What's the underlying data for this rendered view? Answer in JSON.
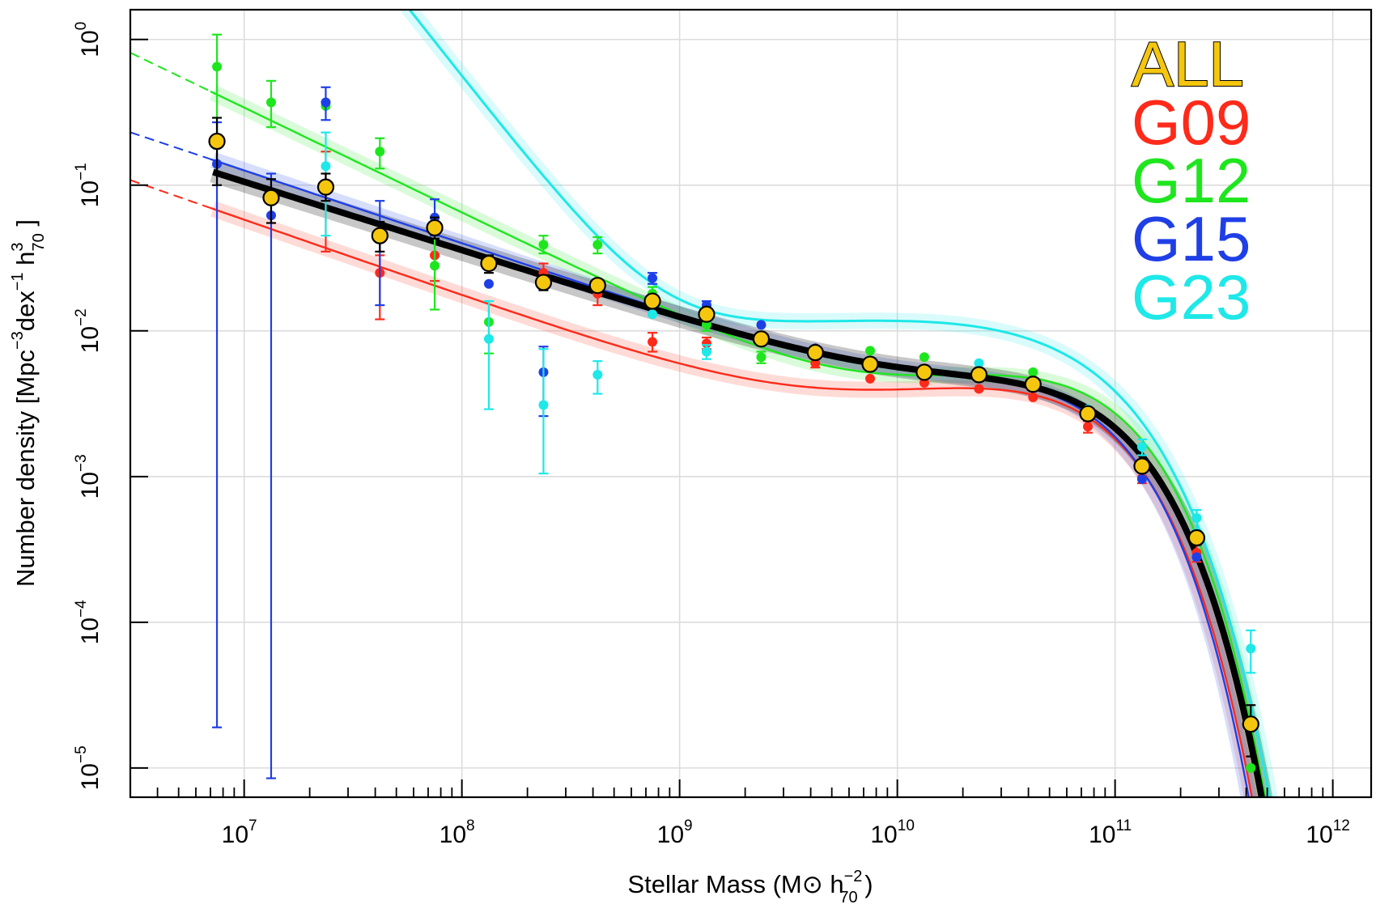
{
  "chart_data": {
    "type": "scatter",
    "title": "",
    "xlabel": "Stellar Mass (M⊙ h⁻²₇₀ )",
    "xlabel_parts": {
      "prefix": "Stellar Mass (M",
      "sun": "⊙",
      "h": " h",
      "sup": "−2",
      "sub": "70",
      "suffix": " )"
    },
    "ylabel": "Number density [Mpc⁻³dex⁻¹ h³₇₀ ]",
    "ylabel_parts": {
      "prefix": "Number density [Mpc",
      "sup1": "−3",
      "dex": "dex",
      "sup2": "−1",
      "h": " h",
      "sup3": "3",
      "sub3": "70",
      "suffix": " ]"
    },
    "xscale": "log",
    "yscale": "log",
    "xlim": [
      3000000,
      1500000000000
    ],
    "ylim": [
      6.3e-06,
      1.6
    ],
    "grid": true,
    "legend_position": "top-right",
    "x_ticks": [
      {
        "base": "10",
        "exp": "7",
        "value": 10000000
      },
      {
        "base": "10",
        "exp": "8",
        "value": 100000000
      },
      {
        "base": "10",
        "exp": "9",
        "value": 1000000000
      },
      {
        "base": "10",
        "exp": "10",
        "value": 10000000000
      },
      {
        "base": "10",
        "exp": "11",
        "value": 100000000000
      },
      {
        "base": "10",
        "exp": "12",
        "value": 1000000000000
      }
    ],
    "y_ticks": [
      {
        "base": "10",
        "exp": "0",
        "value": 1
      },
      {
        "base": "10",
        "exp": "−1",
        "value": 0.1
      },
      {
        "base": "10",
        "exp": "−2",
        "value": 0.01
      },
      {
        "base": "10",
        "exp": "−3",
        "value": 0.001
      },
      {
        "base": "10",
        "exp": "−4",
        "value": 0.0001
      },
      {
        "base": "10",
        "exp": "−5",
        "value": 1e-05
      }
    ],
    "series": [
      {
        "name": "ALL",
        "color": "#f5c60e",
        "outline": "#000000",
        "fit_curve": {
          "Mstar": 55000000000.0,
          "phi1": 0.0035,
          "a1": -0.35,
          "phi2": 0.0008,
          "a2": -1.47,
          "shade": "#000000"
        },
        "points": [
          {
            "x": 7500000.0,
            "y": 0.2,
            "lo": 0.1,
            "hi": 0.29
          },
          {
            "x": 13300000.0,
            "y": 0.082,
            "lo": 0.055,
            "hi": 0.11
          },
          {
            "x": 23700000.0,
            "y": 0.097,
            "lo": 0.078,
            "hi": 0.12
          },
          {
            "x": 42000000.0,
            "y": 0.045,
            "lo": 0.035,
            "hi": 0.056
          },
          {
            "x": 75000000.0,
            "y": 0.051,
            "lo": 0.043,
            "hi": 0.06
          },
          {
            "x": 133000000.0,
            "y": 0.029,
            "lo": 0.025,
            "hi": 0.033
          },
          {
            "x": 237000000.0,
            "y": 0.0215,
            "lo": 0.019,
            "hi": 0.024
          },
          {
            "x": 420000000.0,
            "y": 0.0205,
            "lo": 0.0185,
            "hi": 0.0225
          },
          {
            "x": 750000000.0,
            "y": 0.016,
            "lo": 0.0147,
            "hi": 0.0173
          },
          {
            "x": 1330000000.0,
            "y": 0.013,
            "lo": 0.0122,
            "hi": 0.0138
          },
          {
            "x": 2370000000.0,
            "y": 0.0088,
            "lo": 0.0083,
            "hi": 0.0093
          },
          {
            "x": 4200000000.0,
            "y": 0.0071,
            "lo": 0.0068,
            "hi": 0.0074
          },
          {
            "x": 7500000000.0,
            "y": 0.0059,
            "lo": 0.0057,
            "hi": 0.0061
          },
          {
            "x": 13300000000.0,
            "y": 0.0052,
            "lo": 0.005,
            "hi": 0.0054
          },
          {
            "x": 23700000000.0,
            "y": 0.005,
            "lo": 0.0048,
            "hi": 0.0052
          },
          {
            "x": 42000000000.0,
            "y": 0.0043,
            "lo": 0.0041,
            "hi": 0.0045
          },
          {
            "x": 75000000000.0,
            "y": 0.0027,
            "lo": 0.0026,
            "hi": 0.0028
          },
          {
            "x": 133000000000.0,
            "y": 0.00118,
            "lo": 0.0011,
            "hi": 0.00126
          },
          {
            "x": 237000000000.0,
            "y": 0.00038,
            "lo": 0.00034,
            "hi": 0.00042
          },
          {
            "x": 420000000000.0,
            "y": 2e-05,
            "lo": 1.2e-05,
            "hi": 2.7e-05
          }
        ]
      },
      {
        "name": "G09",
        "color": "#ff2a1a",
        "fit_curve": {
          "Mstar": 50000000000.0,
          "phi1": 0.0037,
          "a1": -0.4,
          "phi2": 0.0003,
          "a2": -1.52,
          "low_start": 3000000.0,
          "dash_end": 7000000.0,
          "shade": "#ff5a4a"
        },
        "points": [
          {
            "x": 7500000.0,
            "y": 0.2,
            "lo": null,
            "hi": null
          },
          {
            "x": 23700000.0,
            "y": 0.1,
            "lo": 0.035,
            "hi": 0.17
          },
          {
            "x": 42000000.0,
            "y": 0.025,
            "lo": 0.012,
            "hi": 0.033
          },
          {
            "x": 75000000.0,
            "y": 0.033,
            "lo": 0.022,
            "hi": 0.045
          },
          {
            "x": 237000000.0,
            "y": 0.025,
            "lo": 0.021,
            "hi": 0.029
          },
          {
            "x": 420000000.0,
            "y": 0.018,
            "lo": 0.015,
            "hi": 0.021
          },
          {
            "x": 750000000.0,
            "y": 0.0084,
            "lo": 0.0072,
            "hi": 0.0097
          },
          {
            "x": 1330000000.0,
            "y": 0.0082,
            "lo": 0.0075,
            "hi": 0.009
          },
          {
            "x": 4200000000.0,
            "y": 0.006,
            "lo": 0.0056,
            "hi": 0.0064
          },
          {
            "x": 7500000000.0,
            "y": 0.0047,
            "lo": null,
            "hi": null
          },
          {
            "x": 13300000000.0,
            "y": 0.0044,
            "lo": null,
            "hi": null
          },
          {
            "x": 23700000000.0,
            "y": 0.004,
            "lo": null,
            "hi": null
          },
          {
            "x": 42000000000.0,
            "y": 0.0035,
            "lo": null,
            "hi": null
          },
          {
            "x": 75000000000.0,
            "y": 0.0022,
            "lo": 0.002,
            "hi": 0.0024
          },
          {
            "x": 133000000000.0,
            "y": 0.00098,
            "lo": 0.0009,
            "hi": 0.00106
          },
          {
            "x": 237000000000.0,
            "y": 0.0003,
            "lo": 0.00026,
            "hi": 0.00034
          }
        ]
      },
      {
        "name": "G12",
        "color": "#1ee61e",
        "fit_curve": {
          "Mstar": 55000000000.0,
          "phi1": 0.0048,
          "a1": -0.35,
          "phi2": 0.0003,
          "a2": -1.72,
          "low_start": 3000000.0,
          "dash_end": 7000000.0,
          "shade": "#55ee55"
        },
        "points": [
          {
            "x": 7500000.0,
            "y": 0.65,
            "lo": 0.2,
            "hi": 1.08
          },
          {
            "x": 13300000.0,
            "y": 0.37,
            "lo": 0.25,
            "hi": 0.52
          },
          {
            "x": 23700000.0,
            "y": 0.35,
            "lo": null,
            "hi": null
          },
          {
            "x": 42000000.0,
            "y": 0.17,
            "lo": 0.13,
            "hi": 0.21
          },
          {
            "x": 75000000.0,
            "y": 0.028,
            "lo": 0.014,
            "hi": 0.045
          },
          {
            "x": 133000000.0,
            "y": 0.0115,
            "lo": 0.007,
            "hi": 0.016
          },
          {
            "x": 237000000.0,
            "y": 0.039,
            "lo": 0.034,
            "hi": 0.045
          },
          {
            "x": 420000000.0,
            "y": 0.039,
            "lo": 0.034,
            "hi": 0.044
          },
          {
            "x": 750000000.0,
            "y": 0.018,
            "lo": 0.016,
            "hi": 0.02
          },
          {
            "x": 1330000000.0,
            "y": 0.011,
            "lo": 0.01,
            "hi": 0.012
          },
          {
            "x": 2370000000.0,
            "y": 0.0066,
            "lo": 0.006,
            "hi": 0.0072
          },
          {
            "x": 7500000000.0,
            "y": 0.0073,
            "lo": null,
            "hi": null
          },
          {
            "x": 13300000000.0,
            "y": 0.0066,
            "lo": null,
            "hi": null
          },
          {
            "x": 42000000000.0,
            "y": 0.0052,
            "lo": null,
            "hi": null
          },
          {
            "x": 420000000000.0,
            "y": 1e-05,
            "lo": null,
            "hi": null
          }
        ]
      },
      {
        "name": "G15",
        "color": "#1f3fe6",
        "fit_curve": {
          "Mstar": 47000000000.0,
          "phi1": 0.0037,
          "a1": -0.3,
          "phi2": 0.0008,
          "a2": -1.5,
          "low_start": 3000000.0,
          "dash_end": 7000000.0,
          "shade": "#4a6af0"
        },
        "points": [
          {
            "x": 7500000.0,
            "y": 0.14,
            "lo": 1.9e-05,
            "hi": 0.27
          },
          {
            "x": 13300000.0,
            "y": 0.062,
            "lo": 8.5e-06,
            "hi": 0.12
          },
          {
            "x": 23700000.0,
            "y": 0.37,
            "lo": 0.28,
            "hi": 0.47
          },
          {
            "x": 42000000.0,
            "y": 0.043,
            "lo": 0.015,
            "hi": 0.078
          },
          {
            "x": 75000000.0,
            "y": 0.06,
            "lo": 0.045,
            "hi": 0.08
          },
          {
            "x": 133000000.0,
            "y": 0.021,
            "lo": null,
            "hi": null
          },
          {
            "x": 237000000.0,
            "y": 0.0052,
            "lo": 0.0026,
            "hi": 0.0078
          },
          {
            "x": 750000000.0,
            "y": 0.023,
            "lo": 0.021,
            "hi": 0.025
          },
          {
            "x": 1330000000.0,
            "y": 0.015,
            "lo": 0.014,
            "hi": 0.016
          },
          {
            "x": 2370000000.0,
            "y": 0.011,
            "lo": null,
            "hi": null
          },
          {
            "x": 4200000000.0,
            "y": 0.0076,
            "lo": null,
            "hi": null
          },
          {
            "x": 23700000000.0,
            "y": 0.0052,
            "lo": null,
            "hi": null
          },
          {
            "x": 133000000000.0,
            "y": 0.00096,
            "lo": null,
            "hi": null
          },
          {
            "x": 237000000000.0,
            "y": 0.00028,
            "lo": null,
            "hi": null
          }
        ]
      },
      {
        "name": "G23",
        "color": "#1ee8e8",
        "fit_curve": {
          "Mstar": 62000000000.0,
          "phi1": 0.0078,
          "a1": -0.85,
          "phi2": 1.2e-06,
          "a2": -2.9,
          "low_start": 3400000.0,
          "dash_end": 7000000.0,
          "shade": "#55eeee"
        },
        "points": [
          {
            "x": 23700000.0,
            "y": 0.135,
            "lo": 0.045,
            "hi": 0.23
          },
          {
            "x": 42000000.0,
            "y": 0.045,
            "lo": null,
            "hi": null
          },
          {
            "x": 133000000.0,
            "y": 0.0088,
            "lo": 0.0029,
            "hi": 0.016
          },
          {
            "x": 237000000.0,
            "y": 0.0031,
            "lo": 0.00105,
            "hi": 0.0075
          },
          {
            "x": 420000000.0,
            "y": 0.005,
            "lo": 0.0037,
            "hi": 0.0062
          },
          {
            "x": 750000000.0,
            "y": 0.013,
            "lo": null,
            "hi": null
          },
          {
            "x": 1330000000.0,
            "y": 0.0072,
            "lo": 0.0064,
            "hi": 0.008
          },
          {
            "x": 23700000000.0,
            "y": 0.006,
            "lo": null,
            "hi": null
          },
          {
            "x": 75000000000.0,
            "y": 0.0029,
            "lo": null,
            "hi": null
          },
          {
            "x": 133000000000.0,
            "y": 0.0016,
            "lo": 0.0014,
            "hi": 0.0018
          },
          {
            "x": 237000000000.0,
            "y": 0.00052,
            "lo": 0.00043,
            "hi": 0.00059
          },
          {
            "x": 420000000000.0,
            "y": 6.6e-05,
            "lo": 4.5e-05,
            "hi": 8.8e-05
          }
        ]
      }
    ]
  }
}
